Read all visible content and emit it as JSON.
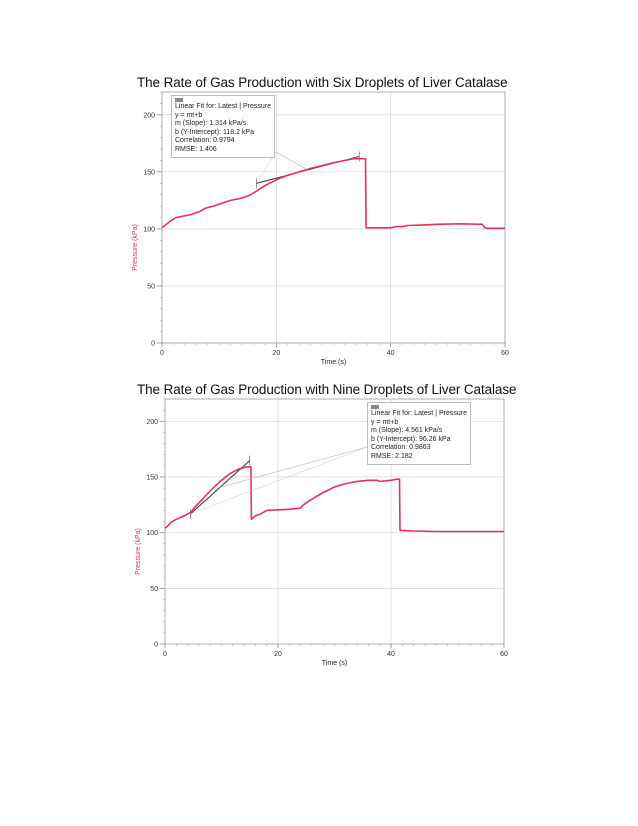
{
  "chart_data": [
    {
      "type": "line",
      "title": "The Rate of Gas Production with Six Droplets of Liver Catalase",
      "xlabel": "Time (s)",
      "ylabel": "Pressure (kPa)",
      "xlim": [
        0,
        60
      ],
      "ylim": [
        0,
        220
      ],
      "xticks": [
        0,
        20,
        40,
        60
      ],
      "yticks": [
        0,
        50,
        100,
        150,
        200
      ],
      "grid": true,
      "line_color": "#e8305a",
      "fit_color": "#333333",
      "series": [
        {
          "x": [
            0,
            0.5,
            1.5,
            2.5,
            3.5,
            5,
            6.5,
            7.5,
            9,
            10.5,
            12,
            13.5,
            14.5,
            15.5,
            16.5,
            18,
            20,
            22,
            24,
            26,
            28,
            30,
            32,
            33.5,
            35.6,
            35.7,
            36,
            40,
            41,
            42,
            43,
            46,
            48,
            52,
            56,
            56.5,
            57,
            60
          ],
          "y": [
            101,
            103,
            107,
            110,
            111,
            112.5,
            115,
            118,
            120,
            122.5,
            125,
            126.5,
            128,
            130,
            133,
            138,
            143,
            147,
            150,
            153,
            155.5,
            158,
            160,
            161.5,
            161.5,
            101,
            101,
            101,
            102,
            102,
            103,
            103.5,
            104,
            104.5,
            104,
            101,
            100.5,
            100.5
          ]
        }
      ],
      "fit": {
        "x_range": [
          16.5,
          34.5
        ],
        "slope": 1.314,
        "intercept": 118.2
      },
      "fit_box": {
        "title": "Linear Fit for: Latest | Pressure",
        "equation": "y = mt+b",
        "slope": "m (Slope): 1.314 kPa/s",
        "intercept": "b (Y-Intercept): 118.2 kPa",
        "correlation": "Correlation: 0.9794",
        "rmse": "RMSE: 1.406"
      }
    },
    {
      "type": "line",
      "title": "The Rate of Gas Production with Nine Droplets of Liver Catalase",
      "xlabel": "Time (s)",
      "ylabel": "Pressure (kPa)",
      "xlim": [
        0,
        60
      ],
      "ylim": [
        0,
        220
      ],
      "xticks": [
        0,
        20,
        40,
        60
      ],
      "yticks": [
        0,
        50,
        100,
        150,
        200
      ],
      "grid": true,
      "line_color": "#e8305a",
      "fit_color": "#333333",
      "series": [
        {
          "x": [
            0,
            0.5,
            1,
            2,
            3,
            4.5,
            5.5,
            7,
            8.5,
            10,
            11.5,
            13,
            14.5,
            15.2,
            15.3,
            16,
            17,
            18,
            20,
            22,
            24,
            24.5,
            26,
            28,
            30,
            32,
            34,
            36,
            37.5,
            38,
            40,
            41,
            41.5,
            41.6,
            42,
            44,
            48,
            50,
            55,
            60
          ],
          "y": [
            104,
            106,
            109,
            112,
            114,
            118,
            124,
            132,
            140,
            147,
            153,
            157,
            159,
            159,
            112,
            115,
            117,
            120,
            120.5,
            121,
            122,
            125,
            130,
            136,
            141,
            144,
            146,
            147,
            147,
            146,
            147,
            148,
            148,
            102,
            102,
            101.5,
            101,
            101,
            101,
            101
          ]
        }
      ],
      "fit": {
        "x_range": [
          4.5,
          15
        ],
        "slope": 4.561,
        "intercept": 96.26
      },
      "fit_box": {
        "title": "Linear Fit for: Latest | Pressure",
        "equation": "y = mt+b",
        "slope": "m (Slope): 4.561 kPa/s",
        "intercept": "b (Y-Intercept): 96.26 kPa",
        "correlation": "Correlation: 0.9863",
        "rmse": "RMSE: 2.182"
      }
    }
  ]
}
